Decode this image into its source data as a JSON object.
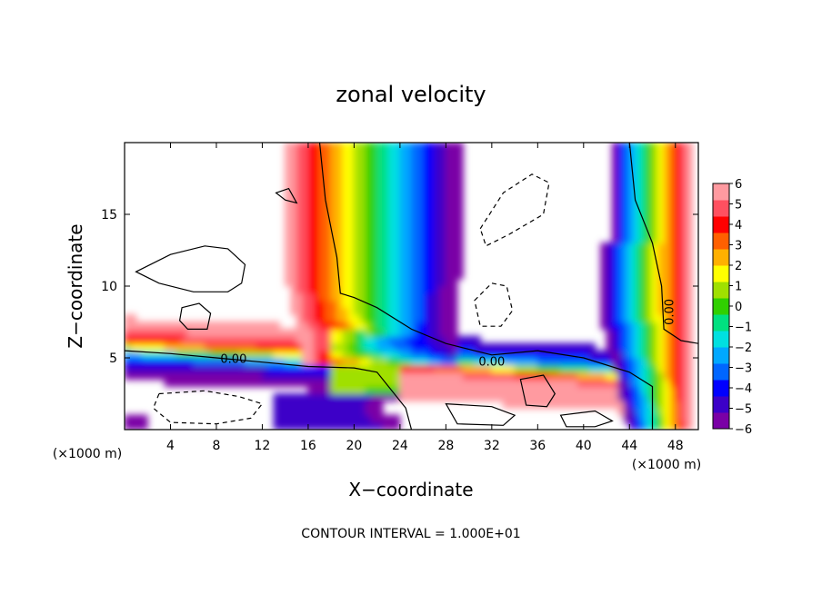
{
  "chart_data": {
    "type": "heatmap",
    "title": "zonal velocity",
    "xlabel": "X−coordinate",
    "ylabel": "Z−coordinate",
    "x_unit_left": "(×1000 m)",
    "x_unit_right": "(×1000 m)",
    "xlim": [
      0,
      50
    ],
    "ylim": [
      0,
      20
    ],
    "x_ticks": [
      4,
      8,
      12,
      16,
      20,
      24,
      28,
      32,
      36,
      40,
      44,
      48
    ],
    "y_ticks": [
      5,
      10,
      15
    ],
    "colorbar": {
      "min": -6,
      "max": 6,
      "ticks": [
        6,
        5,
        4,
        3,
        2,
        1,
        0,
        -1,
        -2,
        -3,
        -4,
        -5,
        -6
      ],
      "tick_labels": [
        "6",
        "5",
        "4",
        "3",
        "2",
        "1",
        "0",
        "−1",
        "−2",
        "−3",
        "−4",
        "−5",
        "−6"
      ],
      "colors": [
        "#7a00a6",
        "#3c00c8",
        "#0000ff",
        "#0066ff",
        "#00a8ff",
        "#00e0e0",
        "#00e080",
        "#30d000",
        "#a0e000",
        "#ffff00",
        "#ffb000",
        "#ff6000",
        "#ff0000",
        "#ff5060",
        "#ff9aa0"
      ]
    },
    "contour_labels": [
      {
        "text": "0.00",
        "x": 9.5,
        "z": 4.9
      },
      {
        "text": "0.00",
        "x": 32.0,
        "z": 4.7
      },
      {
        "text": "0.00",
        "x": 47.5,
        "z": 8.2
      }
    ],
    "contour_interval_note": "CONTOUR INTERVAL = 1.000E+01",
    "features": {
      "left_lower_layer": {
        "z_center": 5.2,
        "x_range": [
          0,
          20
        ],
        "description": "negative (blue) layer under positive (red) band"
      },
      "central_column": {
        "x_center": 22,
        "z_range": [
          5,
          20
        ],
        "description": "positive to negative band rising vertically"
      },
      "right_column": {
        "x_center": 46,
        "z_range": [
          0,
          20
        ]
      },
      "zero_contours": true
    }
  }
}
